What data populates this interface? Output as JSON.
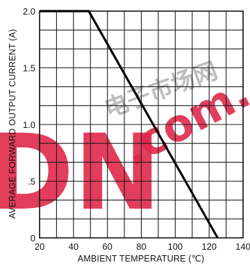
{
  "chart_data": {
    "type": "line",
    "xlabel": "AMBIENT TEMPERATURE (℃)",
    "ylabel": "AVERAGE FORWARD OUTPUT CURRENT  (A)",
    "xlim": [
      20,
      140
    ],
    "ylim": [
      0,
      2.0
    ],
    "x_ticks": [
      20,
      40,
      60,
      80,
      100,
      120,
      140
    ],
    "x_tick_labels": [
      "20",
      "40",
      "60",
      "80",
      "100",
      "120",
      "140"
    ],
    "y_ticks": [
      0,
      0.5,
      1.0,
      1.5,
      2.0
    ],
    "y_tick_labels": [
      "0",
      ".5",
      "1.0",
      "1.5",
      "2.0"
    ],
    "grid": true,
    "grid_x_step": 10,
    "grid_y_step": 0.1667,
    "series": [
      {
        "x": [
          20,
          49,
          125
        ],
        "y": [
          2.0,
          2.0,
          0
        ]
      }
    ]
  },
  "watermark": {
    "text": "电子市场网",
    "url_text": ".com.",
    "brand_text": "DN",
    "color": "#e0284a"
  }
}
